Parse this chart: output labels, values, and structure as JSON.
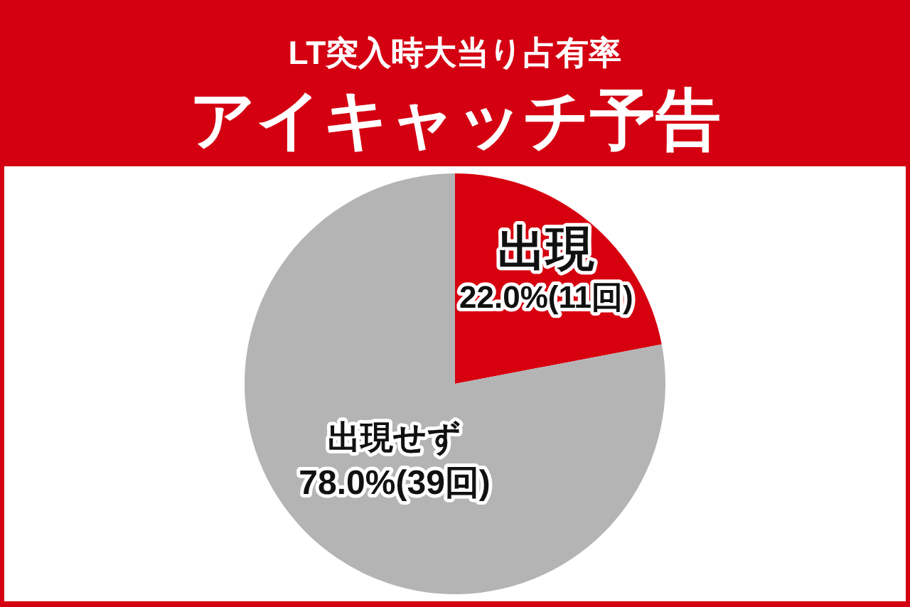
{
  "chart_data": {
    "type": "pie",
    "title": "LT突入時大当り占有率",
    "subtitle": "アイキャッチ予告",
    "categories": [
      "出現",
      "出現せず"
    ],
    "values": [
      22.0,
      78.0
    ],
    "value_labels": [
      "22.0%(11回)",
      "78.0%(39回)"
    ],
    "colors": [
      "#d7000f",
      "#b4b4b5"
    ]
  }
}
